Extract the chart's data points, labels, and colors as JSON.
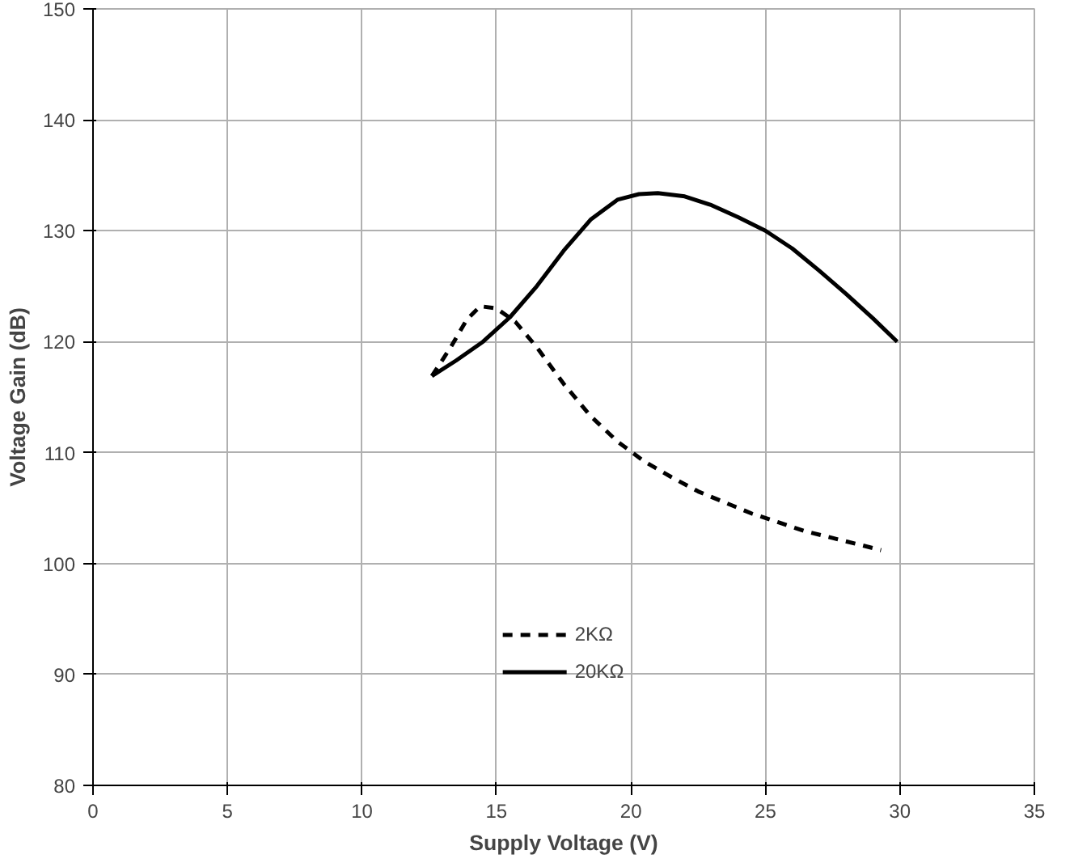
{
  "chart_data": {
    "type": "line",
    "xlabel": "Supply Voltage (V)",
    "ylabel": "Voltage Gain (dB)",
    "xlim": [
      0,
      35
    ],
    "ylim": [
      80,
      150
    ],
    "xticks": [
      0,
      5,
      10,
      15,
      20,
      25,
      30,
      35
    ],
    "yticks": [
      80,
      90,
      100,
      110,
      120,
      130,
      140,
      150
    ],
    "grid": true,
    "legend": "bottom",
    "series": [
      {
        "name": "2KΩ",
        "color": "#000000",
        "line_style": "dashed",
        "x": [
          12.6,
          13.3,
          13.9,
          14.4,
          15,
          15.7,
          16.5,
          17.5,
          18.5,
          19.5,
          20.5,
          21.5,
          22.5,
          23.5,
          24.5,
          25.5,
          26.5,
          27.5,
          28.5,
          29.3
        ],
        "values": [
          116.9,
          119.5,
          122,
          123.2,
          123,
          121.8,
          119.5,
          116.2,
          113.3,
          111,
          109.2,
          107.8,
          106.5,
          105.5,
          104.5,
          103.7,
          102.9,
          102.3,
          101.7,
          101.2
        ]
      },
      {
        "name": "20KΩ",
        "color": "#000000",
        "line_style": "solid",
        "x": [
          12.6,
          13.5,
          14.5,
          15.5,
          16.5,
          17.5,
          18.5,
          19.5,
          20.3,
          21,
          22,
          23,
          24,
          25,
          26,
          27,
          28,
          29,
          29.9
        ],
        "values": [
          116.9,
          118.3,
          120,
          122.2,
          125,
          128.2,
          131,
          132.8,
          133.3,
          133.4,
          133.1,
          132.3,
          131.2,
          130,
          128.4,
          126.4,
          124.3,
          122.1,
          120
        ]
      }
    ]
  }
}
